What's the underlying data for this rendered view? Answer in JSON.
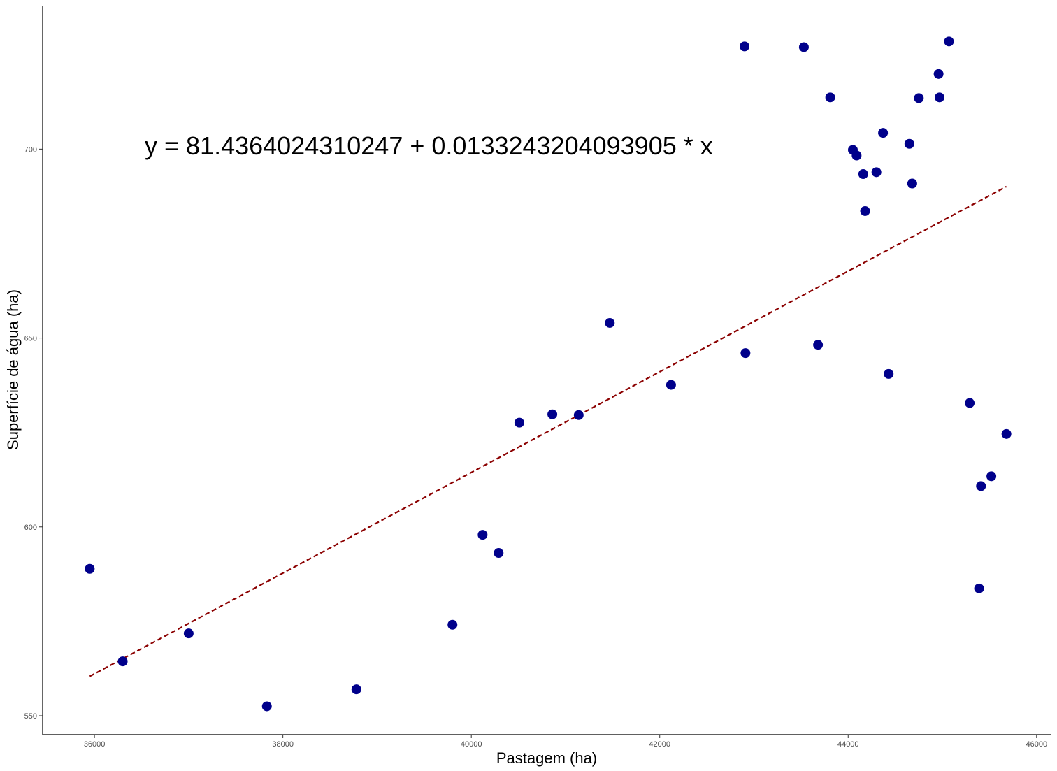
{
  "chart_data": {
    "type": "scatter",
    "title": "",
    "xlabel": "Pastagem  (ha)",
    "ylabel": "Superfície de água  (ha)",
    "xlim": [
      35450,
      46150
    ],
    "ylim": [
      545,
      738
    ],
    "xticks": [
      36000,
      38000,
      40000,
      42000,
      44000,
      46000
    ],
    "yticks": [
      550,
      600,
      650,
      700
    ],
    "grid": false,
    "point_color": "#00008B",
    "line_color": "#8B0000",
    "annotation": "y = 81.4364024310247 + 0.0133243204093905 * x",
    "fit": {
      "intercept": 81.4364024310247,
      "slope": 0.0133243204093905,
      "x_range": [
        35950,
        45680
      ],
      "line_style": "dashed"
    },
    "points": [
      {
        "x": 35950,
        "y": 588.9
      },
      {
        "x": 36300,
        "y": 564.4
      },
      {
        "x": 37000,
        "y": 571.8
      },
      {
        "x": 37830,
        "y": 552.5
      },
      {
        "x": 38780,
        "y": 557.0
      },
      {
        "x": 39800,
        "y": 574.1
      },
      {
        "x": 40120,
        "y": 597.9
      },
      {
        "x": 40290,
        "y": 593.1
      },
      {
        "x": 40510,
        "y": 627.6
      },
      {
        "x": 40860,
        "y": 629.8
      },
      {
        "x": 41140,
        "y": 629.6
      },
      {
        "x": 41470,
        "y": 654.0
      },
      {
        "x": 42120,
        "y": 637.6
      },
      {
        "x": 42900,
        "y": 727.2
      },
      {
        "x": 42910,
        "y": 646.0
      },
      {
        "x": 43530,
        "y": 727.0
      },
      {
        "x": 43680,
        "y": 648.2
      },
      {
        "x": 43810,
        "y": 713.7
      },
      {
        "x": 44050,
        "y": 699.8
      },
      {
        "x": 44090,
        "y": 698.3
      },
      {
        "x": 44160,
        "y": 693.4
      },
      {
        "x": 44180,
        "y": 683.6
      },
      {
        "x": 44300,
        "y": 693.9
      },
      {
        "x": 44370,
        "y": 704.3
      },
      {
        "x": 44430,
        "y": 640.5
      },
      {
        "x": 44650,
        "y": 701.4
      },
      {
        "x": 44680,
        "y": 690.9
      },
      {
        "x": 44750,
        "y": 713.5
      },
      {
        "x": 44960,
        "y": 719.9
      },
      {
        "x": 44970,
        "y": 713.7
      },
      {
        "x": 45070,
        "y": 728.5
      },
      {
        "x": 45290,
        "y": 632.8
      },
      {
        "x": 45390,
        "y": 583.7
      },
      {
        "x": 45410,
        "y": 610.8
      },
      {
        "x": 45520,
        "y": 613.4
      },
      {
        "x": 45680,
        "y": 624.6
      }
    ]
  }
}
